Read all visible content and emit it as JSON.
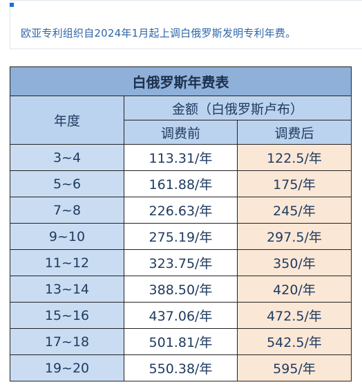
{
  "intro": "欧亚专利组织自2024年1月起上调白俄罗斯发明专利年费。",
  "table": {
    "title": "白俄罗斯年费表",
    "col_year": "年度",
    "col_amount": "金额（白俄罗斯卢布）",
    "col_before": "调费前",
    "col_after": "调费后",
    "rows": [
      {
        "year": "3~4",
        "before": "113.31/年",
        "after": "122.5/年"
      },
      {
        "year": "5~6",
        "before": "161.88/年",
        "after": "175/年"
      },
      {
        "year": "7~8",
        "before": "226.63/年",
        "after": "245/年"
      },
      {
        "year": "9~10",
        "before": "275.19/年",
        "after": "297.5/年"
      },
      {
        "year": "11~12",
        "before": "323.75/年",
        "after": "350/年"
      },
      {
        "year": "13~14",
        "before": "388.50/年",
        "after": "420/年"
      },
      {
        "year": "15~16",
        "before": "437.06/年",
        "after": "472.5/年"
      },
      {
        "year": "17~18",
        "before": "501.81/年",
        "after": "542.5/年"
      },
      {
        "year": "19~20",
        "before": "550.38/年",
        "after": "595/年"
      }
    ]
  },
  "colors": {
    "accent": "#1e6fd0",
    "title_bg": "#8eb0d9",
    "header_bg": "#bcd3ef",
    "year_bg": "#c9dcf2",
    "after_bg": "#fbe7d6"
  }
}
